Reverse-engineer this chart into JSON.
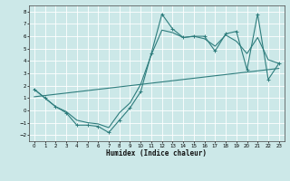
{
  "xlabel": "Humidex (Indice chaleur)",
  "bg_color": "#cce8e8",
  "grid_color": "#ffffff",
  "line_color": "#2e7d7d",
  "xlim": [
    -0.5,
    23.5
  ],
  "ylim": [
    -2.5,
    8.5
  ],
  "xticks": [
    0,
    1,
    2,
    3,
    4,
    5,
    6,
    7,
    8,
    9,
    10,
    11,
    12,
    13,
    14,
    15,
    16,
    17,
    18,
    19,
    20,
    21,
    22,
    23
  ],
  "yticks": [
    -2,
    -1,
    0,
    1,
    2,
    3,
    4,
    5,
    6,
    7,
    8
  ],
  "data_x": [
    0,
    1,
    2,
    3,
    4,
    5,
    6,
    7,
    8,
    9,
    10,
    11,
    12,
    13,
    14,
    15,
    16,
    17,
    18,
    19,
    20,
    21,
    22,
    23
  ],
  "data_y": [
    1.7,
    1.0,
    0.3,
    -0.2,
    -1.2,
    -1.2,
    -1.3,
    -1.8,
    -0.8,
    0.2,
    1.5,
    4.6,
    7.8,
    6.6,
    5.9,
    6.0,
    6.0,
    4.8,
    6.2,
    6.4,
    3.3,
    7.8,
    2.5,
    3.8
  ],
  "trend_x": [
    0,
    23
  ],
  "trend_y": [
    1.1,
    3.4
  ],
  "smooth_x": [
    0,
    1,
    2,
    3,
    4,
    5,
    6,
    7,
    8,
    9,
    10,
    11,
    12,
    13,
    14,
    15,
    16,
    17,
    18,
    19,
    20,
    21,
    22,
    23
  ],
  "smooth_y": [
    1.7,
    1.0,
    0.3,
    -0.1,
    -0.8,
    -1.0,
    -1.1,
    -1.4,
    -0.2,
    0.6,
    2.1,
    4.5,
    6.5,
    6.3,
    5.9,
    6.0,
    5.8,
    5.2,
    6.1,
    5.6,
    4.6,
    5.9,
    4.1,
    3.8
  ]
}
